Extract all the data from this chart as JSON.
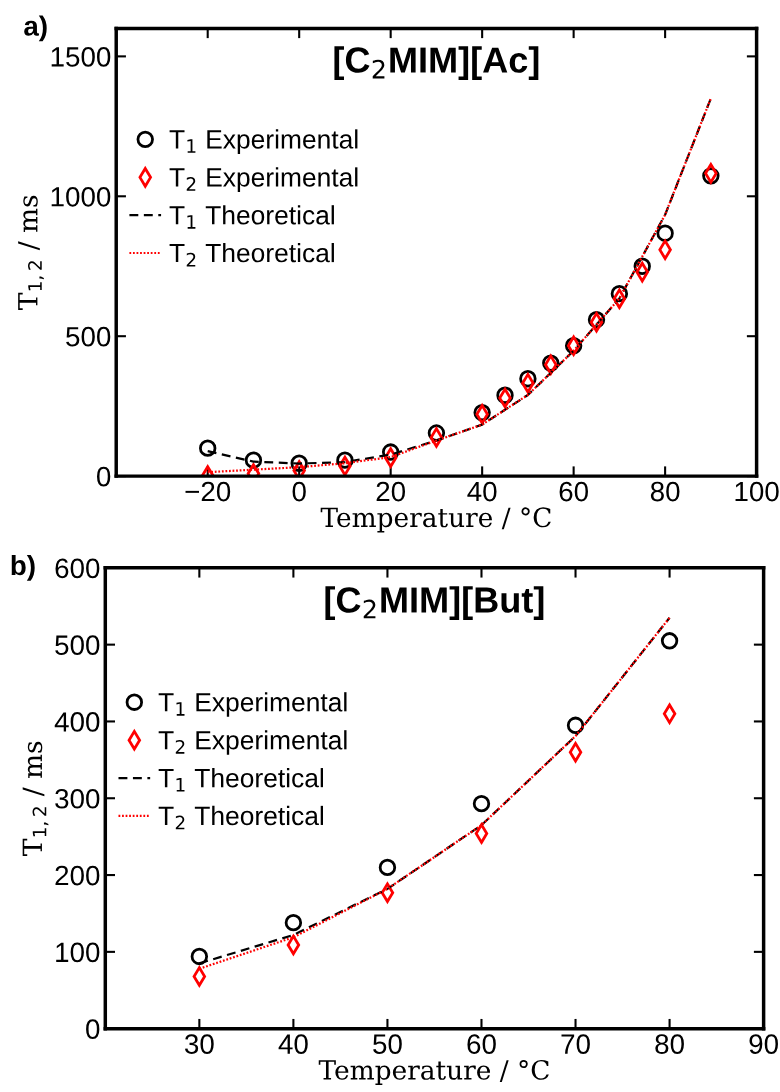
{
  "chart_data": [
    {
      "type": "scatter",
      "title": "[C$_{2}$MIM][Ac]",
      "xlabel": "Temperature / °C",
      "ylabel": "T$_{1,2}$ / ms",
      "annotations": [
        "a)"
      ],
      "xlim": [
        -40,
        100
      ],
      "xticks": [
        {
          "value": -20,
          "label": "−20"
        },
        0,
        20,
        40,
        60,
        80,
        100
      ],
      "ylim": [
        0,
        1600
      ],
      "yticks": [
        0,
        500,
        1000,
        1500
      ],
      "legend": "left",
      "grid": false,
      "series": [
        {
          "name": "T$_{1}$ Experimental",
          "type": "scatter",
          "marker": "circle",
          "color": "#000000",
          "x": [
            -20,
            -10,
            0,
            10,
            20,
            30,
            40,
            45,
            50,
            55,
            60,
            65,
            70,
            75,
            80,
            90
          ],
          "values": [
            100,
            57,
            46,
            57,
            86,
            154,
            227,
            289,
            348,
            404,
            466,
            559,
            652,
            750,
            868,
            1073
          ]
        },
        {
          "name": "T$_{2}$ Experimental",
          "type": "scatter",
          "marker": "diamond",
          "color": "#ff0000",
          "x": [
            -20,
            -10,
            0,
            10,
            20,
            30,
            40,
            45,
            50,
            55,
            60,
            65,
            70,
            75,
            80,
            90
          ],
          "values": [
            2,
            9,
            20,
            36,
            66,
            138,
            221,
            279,
            332,
            398,
            466,
            550,
            634,
            729,
            809,
            1082
          ]
        },
        {
          "name": "T$_{1}$ Theoretical",
          "type": "line",
          "line_style": "dashed",
          "color": "#000000",
          "x": [
            -20,
            -10,
            0,
            10,
            20,
            30,
            40,
            50,
            60,
            70,
            80,
            90
          ],
          "values": [
            89,
            52,
            45,
            50,
            77,
            127,
            184,
            290,
            448,
            635,
            934,
            1350
          ]
        },
        {
          "name": "T$_{2}$ Theoretical",
          "type": "line",
          "line_style": "dotted",
          "color": "#ff0000",
          "x": [
            -20,
            -10,
            0,
            10,
            20,
            30,
            40,
            50,
            60,
            70,
            80,
            90
          ],
          "values": [
            14,
            23,
            32,
            46,
            68,
            127,
            184,
            290,
            448,
            635,
            934,
            1350
          ]
        }
      ]
    },
    {
      "type": "scatter",
      "title": "[C$_{2}$MIM][But]",
      "xlabel": "Temperature / °C",
      "ylabel": "T$_{1,2}$ / ms",
      "annotations": [
        "b)"
      ],
      "xlim": [
        20,
        90
      ],
      "xticks": [
        30,
        40,
        50,
        60,
        70,
        80,
        90
      ],
      "ylim": [
        0,
        600
      ],
      "yticks": [
        0,
        100,
        200,
        300,
        400,
        500,
        600
      ],
      "legend": "left",
      "grid": false,
      "series": [
        {
          "name": "T$_{1}$ Experimental",
          "type": "scatter",
          "marker": "circle",
          "color": "#000000",
          "x": [
            30,
            40,
            50,
            60,
            70,
            80
          ],
          "values": [
            94,
            138,
            210,
            293,
            395,
            505
          ]
        },
        {
          "name": "T$_{2}$ Experimental",
          "type": "scatter",
          "marker": "diamond",
          "color": "#ff0000",
          "x": [
            30,
            40,
            50,
            60,
            70,
            80
          ],
          "values": [
            68,
            109,
            177,
            254,
            360,
            410
          ]
        },
        {
          "name": "T$_{1}$ Theoretical",
          "type": "line",
          "line_style": "dashed",
          "color": "#000000",
          "x": [
            30,
            40,
            50,
            60,
            70,
            80
          ],
          "values": [
            85,
            122,
            182,
            265,
            381,
            535
          ]
        },
        {
          "name": "T$_{2}$ Theoretical",
          "type": "line",
          "line_style": "dotted",
          "color": "#ff0000",
          "x": [
            30,
            40,
            50,
            60,
            70,
            80
          ],
          "values": [
            78,
            119,
            182,
            265,
            381,
            535
          ]
        }
      ]
    }
  ]
}
